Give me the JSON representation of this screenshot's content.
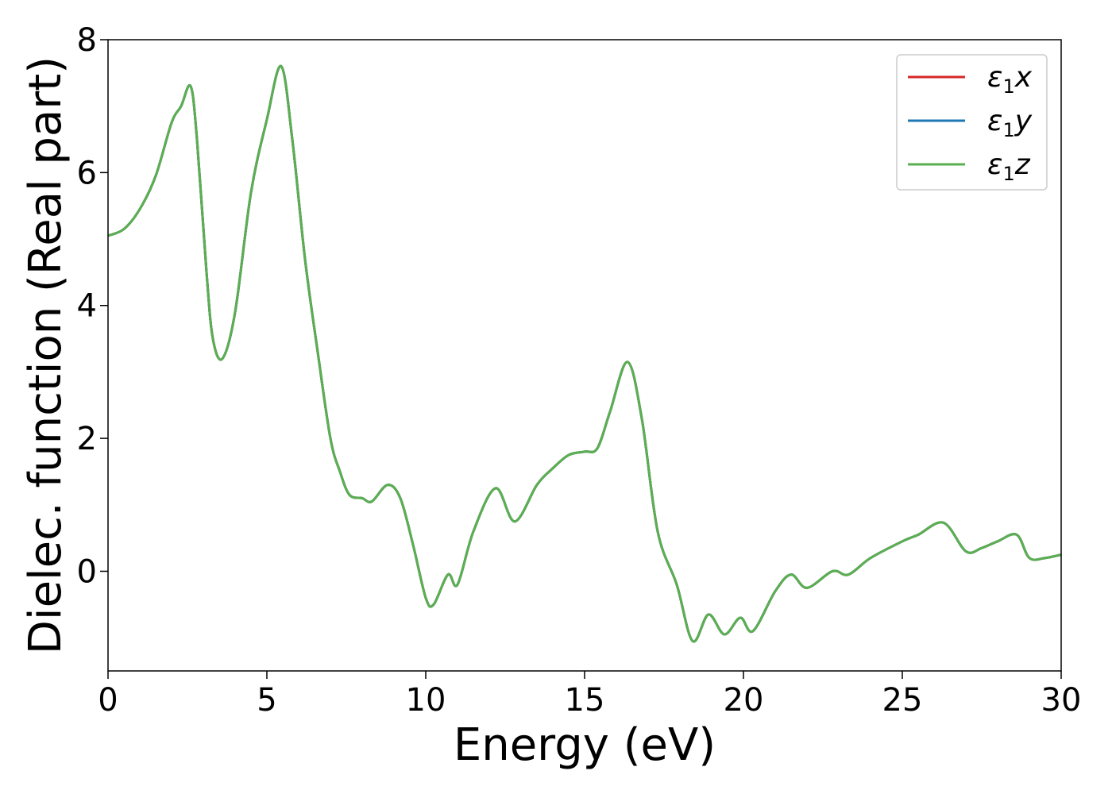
{
  "chart_data": {
    "type": "line",
    "title": "",
    "xlabel": "Energy (eV)",
    "ylabel": "Dielec. function (Real part)",
    "xlim": [
      0,
      30
    ],
    "ylim": [
      -1.5,
      8
    ],
    "xticks": [
      0,
      5,
      10,
      15,
      20,
      25,
      30
    ],
    "yticks": [
      0,
      2,
      4,
      6,
      8
    ],
    "xtick_labels": [
      "0",
      "5",
      "10",
      "15",
      "20",
      "25",
      "30"
    ],
    "ytick_labels": [
      "0",
      "2",
      "4",
      "6",
      "8"
    ],
    "grid": false,
    "legend_position": "top-right",
    "series": [
      {
        "name": "ε₁x",
        "legend_base": "ε",
        "legend_sub": "1",
        "legend_suffix": "x",
        "color": "#d62728",
        "x": [
          0,
          0.5,
          1.0,
          1.5,
          2.0,
          2.3,
          2.6,
          2.8,
          3.1,
          3.3,
          3.6,
          4.0,
          4.5,
          5.0,
          5.45,
          5.8,
          6.2,
          6.6,
          7.0,
          7.3,
          7.6,
          8.0,
          8.3,
          8.8,
          9.2,
          9.6,
          10.0,
          10.25,
          10.7,
          11.0,
          11.5,
          12.2,
          12.8,
          13.5,
          14.0,
          14.5,
          15.0,
          15.4,
          15.8,
          16.35,
          16.8,
          17.3,
          17.9,
          18.4,
          18.9,
          19.4,
          19.9,
          20.3,
          21.0,
          21.5,
          22.0,
          22.8,
          23.3,
          24.0,
          25.0,
          25.5,
          26.3,
          27.0,
          27.5,
          28.0,
          28.6,
          29.0,
          29.5,
          30.0
        ],
        "values": [
          5.05,
          5.15,
          5.45,
          5.95,
          6.75,
          7.0,
          7.3,
          6.5,
          4.5,
          3.5,
          3.2,
          3.9,
          5.7,
          6.8,
          7.6,
          6.5,
          4.7,
          3.3,
          2.0,
          1.5,
          1.15,
          1.1,
          1.05,
          1.3,
          1.1,
          0.4,
          -0.4,
          -0.5,
          -0.05,
          -0.2,
          0.6,
          1.25,
          0.75,
          1.3,
          1.55,
          1.75,
          1.8,
          1.85,
          2.4,
          3.15,
          2.3,
          0.6,
          -0.2,
          -1.05,
          -0.65,
          -0.95,
          -0.7,
          -0.9,
          -0.3,
          -0.05,
          -0.25,
          0.0,
          -0.05,
          0.2,
          0.45,
          0.55,
          0.73,
          0.3,
          0.35,
          0.45,
          0.55,
          0.2,
          0.2,
          0.25
        ]
      },
      {
        "name": "ε₁y",
        "legend_base": "ε",
        "legend_sub": "1",
        "legend_suffix": "y",
        "color": "#1f77b4",
        "x": [
          0,
          0.5,
          1.0,
          1.5,
          2.0,
          2.3,
          2.6,
          2.8,
          3.1,
          3.3,
          3.6,
          4.0,
          4.5,
          5.0,
          5.45,
          5.8,
          6.2,
          6.6,
          7.0,
          7.3,
          7.6,
          8.0,
          8.3,
          8.8,
          9.2,
          9.6,
          10.0,
          10.25,
          10.7,
          11.0,
          11.5,
          12.2,
          12.8,
          13.5,
          14.0,
          14.5,
          15.0,
          15.4,
          15.8,
          16.35,
          16.8,
          17.3,
          17.9,
          18.4,
          18.9,
          19.4,
          19.9,
          20.3,
          21.0,
          21.5,
          22.0,
          22.8,
          23.3,
          24.0,
          25.0,
          25.5,
          26.3,
          27.0,
          27.5,
          28.0,
          28.6,
          29.0,
          29.5,
          30.0
        ],
        "values": [
          5.05,
          5.15,
          5.45,
          5.95,
          6.75,
          7.0,
          7.3,
          6.5,
          4.5,
          3.5,
          3.2,
          3.9,
          5.7,
          6.8,
          7.6,
          6.5,
          4.7,
          3.3,
          2.0,
          1.5,
          1.15,
          1.1,
          1.05,
          1.3,
          1.1,
          0.4,
          -0.4,
          -0.5,
          -0.05,
          -0.2,
          0.6,
          1.25,
          0.75,
          1.3,
          1.55,
          1.75,
          1.8,
          1.85,
          2.4,
          3.15,
          2.3,
          0.6,
          -0.2,
          -1.05,
          -0.65,
          -0.95,
          -0.7,
          -0.9,
          -0.3,
          -0.05,
          -0.25,
          0.0,
          -0.05,
          0.2,
          0.45,
          0.55,
          0.73,
          0.3,
          0.35,
          0.45,
          0.55,
          0.2,
          0.2,
          0.25
        ]
      },
      {
        "name": "ε₁z",
        "legend_base": "ε",
        "legend_sub": "1",
        "legend_suffix": "z",
        "color": "#5aaf50",
        "x": [
          0,
          0.5,
          1.0,
          1.5,
          2.0,
          2.3,
          2.6,
          2.8,
          3.1,
          3.3,
          3.6,
          4.0,
          4.5,
          5.0,
          5.45,
          5.8,
          6.2,
          6.6,
          7.0,
          7.3,
          7.6,
          8.0,
          8.3,
          8.8,
          9.2,
          9.6,
          10.0,
          10.25,
          10.7,
          11.0,
          11.5,
          12.2,
          12.8,
          13.5,
          14.0,
          14.5,
          15.0,
          15.4,
          15.8,
          16.35,
          16.8,
          17.3,
          17.9,
          18.4,
          18.9,
          19.4,
          19.9,
          20.3,
          21.0,
          21.5,
          22.0,
          22.8,
          23.3,
          24.0,
          25.0,
          25.5,
          26.3,
          27.0,
          27.5,
          28.0,
          28.6,
          29.0,
          29.5,
          30.0
        ],
        "values": [
          5.05,
          5.15,
          5.45,
          5.95,
          6.75,
          7.0,
          7.3,
          6.5,
          4.5,
          3.5,
          3.2,
          3.9,
          5.7,
          6.8,
          7.6,
          6.5,
          4.7,
          3.3,
          2.0,
          1.5,
          1.15,
          1.1,
          1.05,
          1.3,
          1.1,
          0.4,
          -0.4,
          -0.5,
          -0.05,
          -0.2,
          0.6,
          1.25,
          0.75,
          1.3,
          1.55,
          1.75,
          1.8,
          1.85,
          2.4,
          3.15,
          2.3,
          0.6,
          -0.2,
          -1.05,
          -0.65,
          -0.95,
          -0.7,
          -0.9,
          -0.3,
          -0.05,
          -0.25,
          0.0,
          -0.05,
          0.2,
          0.45,
          0.55,
          0.73,
          0.3,
          0.35,
          0.45,
          0.55,
          0.2,
          0.2,
          0.25
        ]
      }
    ]
  }
}
